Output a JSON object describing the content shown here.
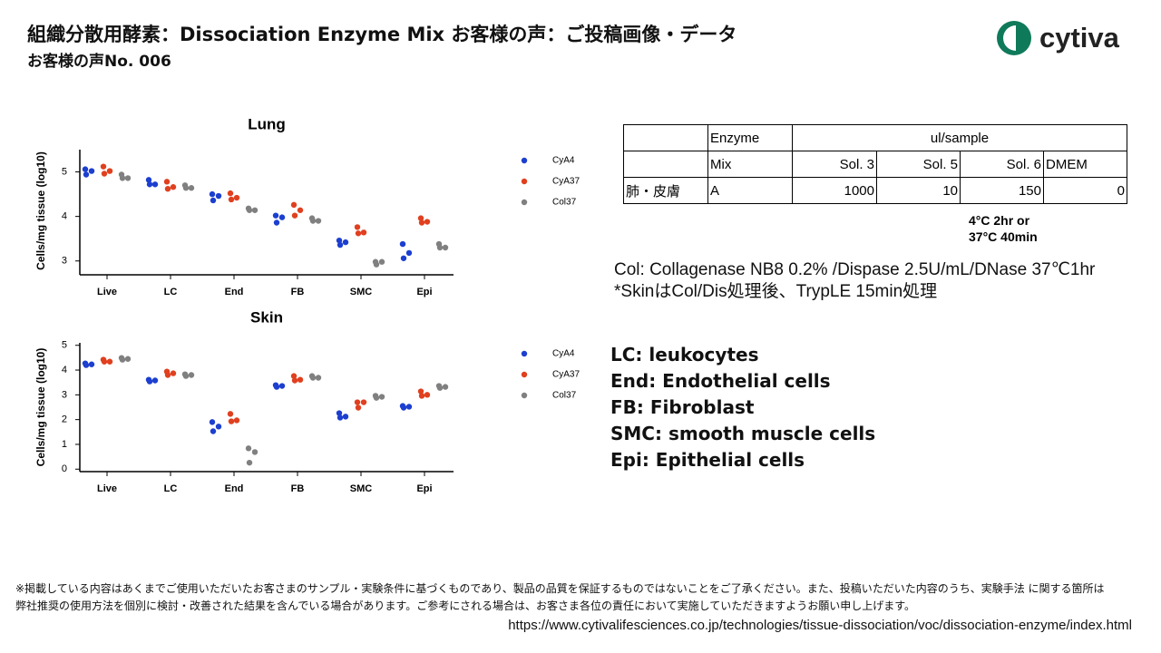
{
  "header": {
    "title": "組織分散用酵素：Dissociation Enzyme Mix お客様の声：ご投稿画像・データ",
    "subtitle": "お客様の声No. 006",
    "logo": "cytiva"
  },
  "chart_data": [
    {
      "type": "dot",
      "title": "Lung",
      "y_label": "Cells/mg tissue (log10)",
      "categories": [
        "Live",
        "LC",
        "End",
        "FB",
        "SMC",
        "Epi"
      ],
      "ylim": [
        2.75,
        5.5
      ],
      "yticks": [
        3,
        4,
        5
      ],
      "series": [
        {
          "name": "CyA4",
          "color": "#1c3fd0",
          "values": [
            [
              5.06,
              5.02,
              4.94
            ],
            [
              4.82,
              4.72,
              4.72
            ],
            [
              4.5,
              4.46,
              4.36
            ],
            [
              4.02,
              3.98,
              3.86
            ],
            [
              3.46,
              3.42,
              3.36
            ],
            [
              3.38,
              3.18,
              3.06
            ]
          ]
        },
        {
          "name": "CyA37",
          "color": "#e0401f",
          "values": [
            [
              5.12,
              5.02,
              4.96
            ],
            [
              4.78,
              4.66,
              4.62
            ],
            [
              4.52,
              4.42,
              4.38
            ],
            [
              4.26,
              4.14,
              4.02
            ],
            [
              3.76,
              3.64,
              3.62
            ],
            [
              3.96,
              3.88,
              3.86
            ]
          ]
        },
        {
          "name": "Col37",
          "color": "#808080",
          "values": [
            [
              4.94,
              4.86,
              4.86
            ],
            [
              4.7,
              4.64,
              4.64
            ],
            [
              4.18,
              4.14,
              4.14
            ],
            [
              3.96,
              3.9,
              3.9
            ],
            [
              2.98,
              2.98,
              2.92
            ],
            [
              3.38,
              3.3,
              3.3
            ]
          ]
        }
      ]
    },
    {
      "type": "dot",
      "title": "Skin",
      "y_label": "Cells/mg tissue (log10)",
      "categories": [
        "Live",
        "LC",
        "End",
        "FB",
        "SMC",
        "Epi"
      ],
      "ylim": [
        -0.1,
        5.1
      ],
      "yticks": [
        0,
        1,
        2,
        3,
        4,
        5
      ],
      "series": [
        {
          "name": "CyA4",
          "color": "#1c3fd0",
          "values": [
            [
              4.27,
              4.23,
              4.2
            ],
            [
              3.61,
              3.58,
              3.54
            ],
            [
              1.9,
              1.72,
              1.53
            ],
            [
              3.39,
              3.36,
              3.32
            ],
            [
              2.26,
              2.12,
              2.08
            ],
            [
              2.55,
              2.52,
              2.48
            ]
          ]
        },
        {
          "name": "CyA37",
          "color": "#e0401f",
          "values": [
            [
              4.42,
              4.34,
              4.34
            ],
            [
              3.94,
              3.87,
              3.8
            ],
            [
              2.23,
              1.97,
              1.93
            ],
            [
              3.76,
              3.61,
              3.58
            ],
            [
              2.7,
              2.7,
              2.48
            ],
            [
              3.14,
              3.0,
              2.96
            ]
          ]
        },
        {
          "name": "Col37",
          "color": "#808080",
          "values": [
            [
              4.49,
              4.45,
              4.42
            ],
            [
              3.83,
              3.8,
              3.76
            ],
            [
              0.84,
              0.69,
              0.26
            ],
            [
              3.76,
              3.69,
              3.69
            ],
            [
              2.96,
              2.92,
              2.88
            ],
            [
              3.36,
              3.32,
              3.28
            ]
          ]
        }
      ]
    }
  ],
  "table": {
    "rows": [
      [
        "",
        "Enzyme",
        "ul/sample"
      ],
      [
        "",
        "Mix",
        "Sol. 3",
        "Sol. 5",
        "Sol. 6",
        "DMEM"
      ],
      [
        "肺・皮膚",
        "A",
        "1000",
        "10",
        "150",
        "0"
      ]
    ]
  },
  "conditions": [
    "4°C 2hr or",
    "37°C 40min"
  ],
  "notes": [
    "Col: Collagenase NB8 0.2% /Dispase 2.5U/mL/DNase 37℃1hr",
    "*SkinはCol/Dis処理後、TrypLE 15min処理"
  ],
  "abbreviations": [
    "LC: leukocytes",
    "End: Endothelial cells",
    "FB: Fibroblast",
    "SMC: smooth muscle cells",
    "Epi: Epithelial cells"
  ],
  "footer": {
    "disclaimer": [
      "※掲載している内容はあくまでご使用いただいたお客さまのサンプル・実験条件に基づくものであり、製品の品質を保証するものではないことをご了承ください。また、投稿いただいた内容のうち、実験手法 に関する箇所は",
      "弊社推奨の使用方法を個別に検討・改善された結果を含んでいる場合があります。ご参考にされる場合は、お客さま各位の責任において実施していただきますようお願い申し上げます。"
    ],
    "url": "https://www.cytivalifesciences.co.jp/technologies/tissue-dissociation/voc/dissociation-enzyme/index.html"
  }
}
